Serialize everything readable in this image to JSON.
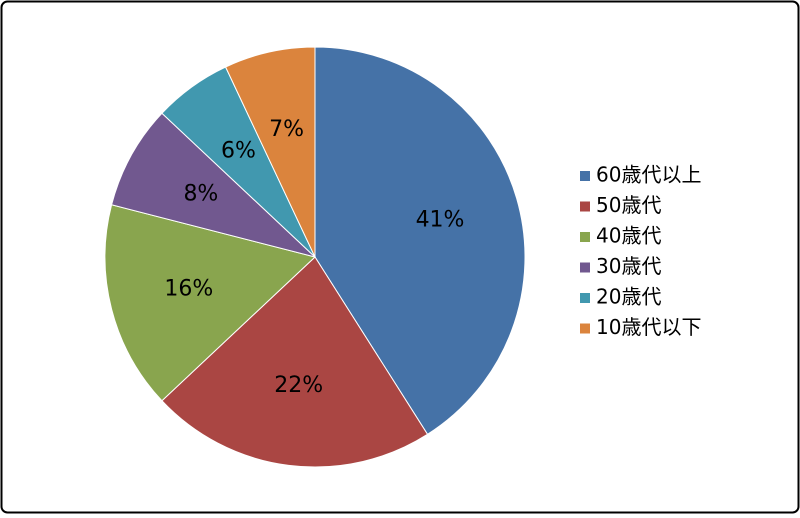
{
  "chart_data": {
    "type": "pie",
    "categories": [
      "60歳代以上",
      "50歳代",
      "40歳代",
      "30歳代",
      "20歳代",
      "10歳代以下"
    ],
    "values": [
      41,
      22,
      16,
      8,
      6,
      7
    ],
    "value_labels": [
      "41%",
      "22%",
      "16%",
      "8%",
      "6%",
      "7%"
    ],
    "colors": [
      "#4572a7",
      "#aa4643",
      "#89a54e",
      "#71588f",
      "#4198af",
      "#db843d"
    ],
    "legend": "right"
  }
}
